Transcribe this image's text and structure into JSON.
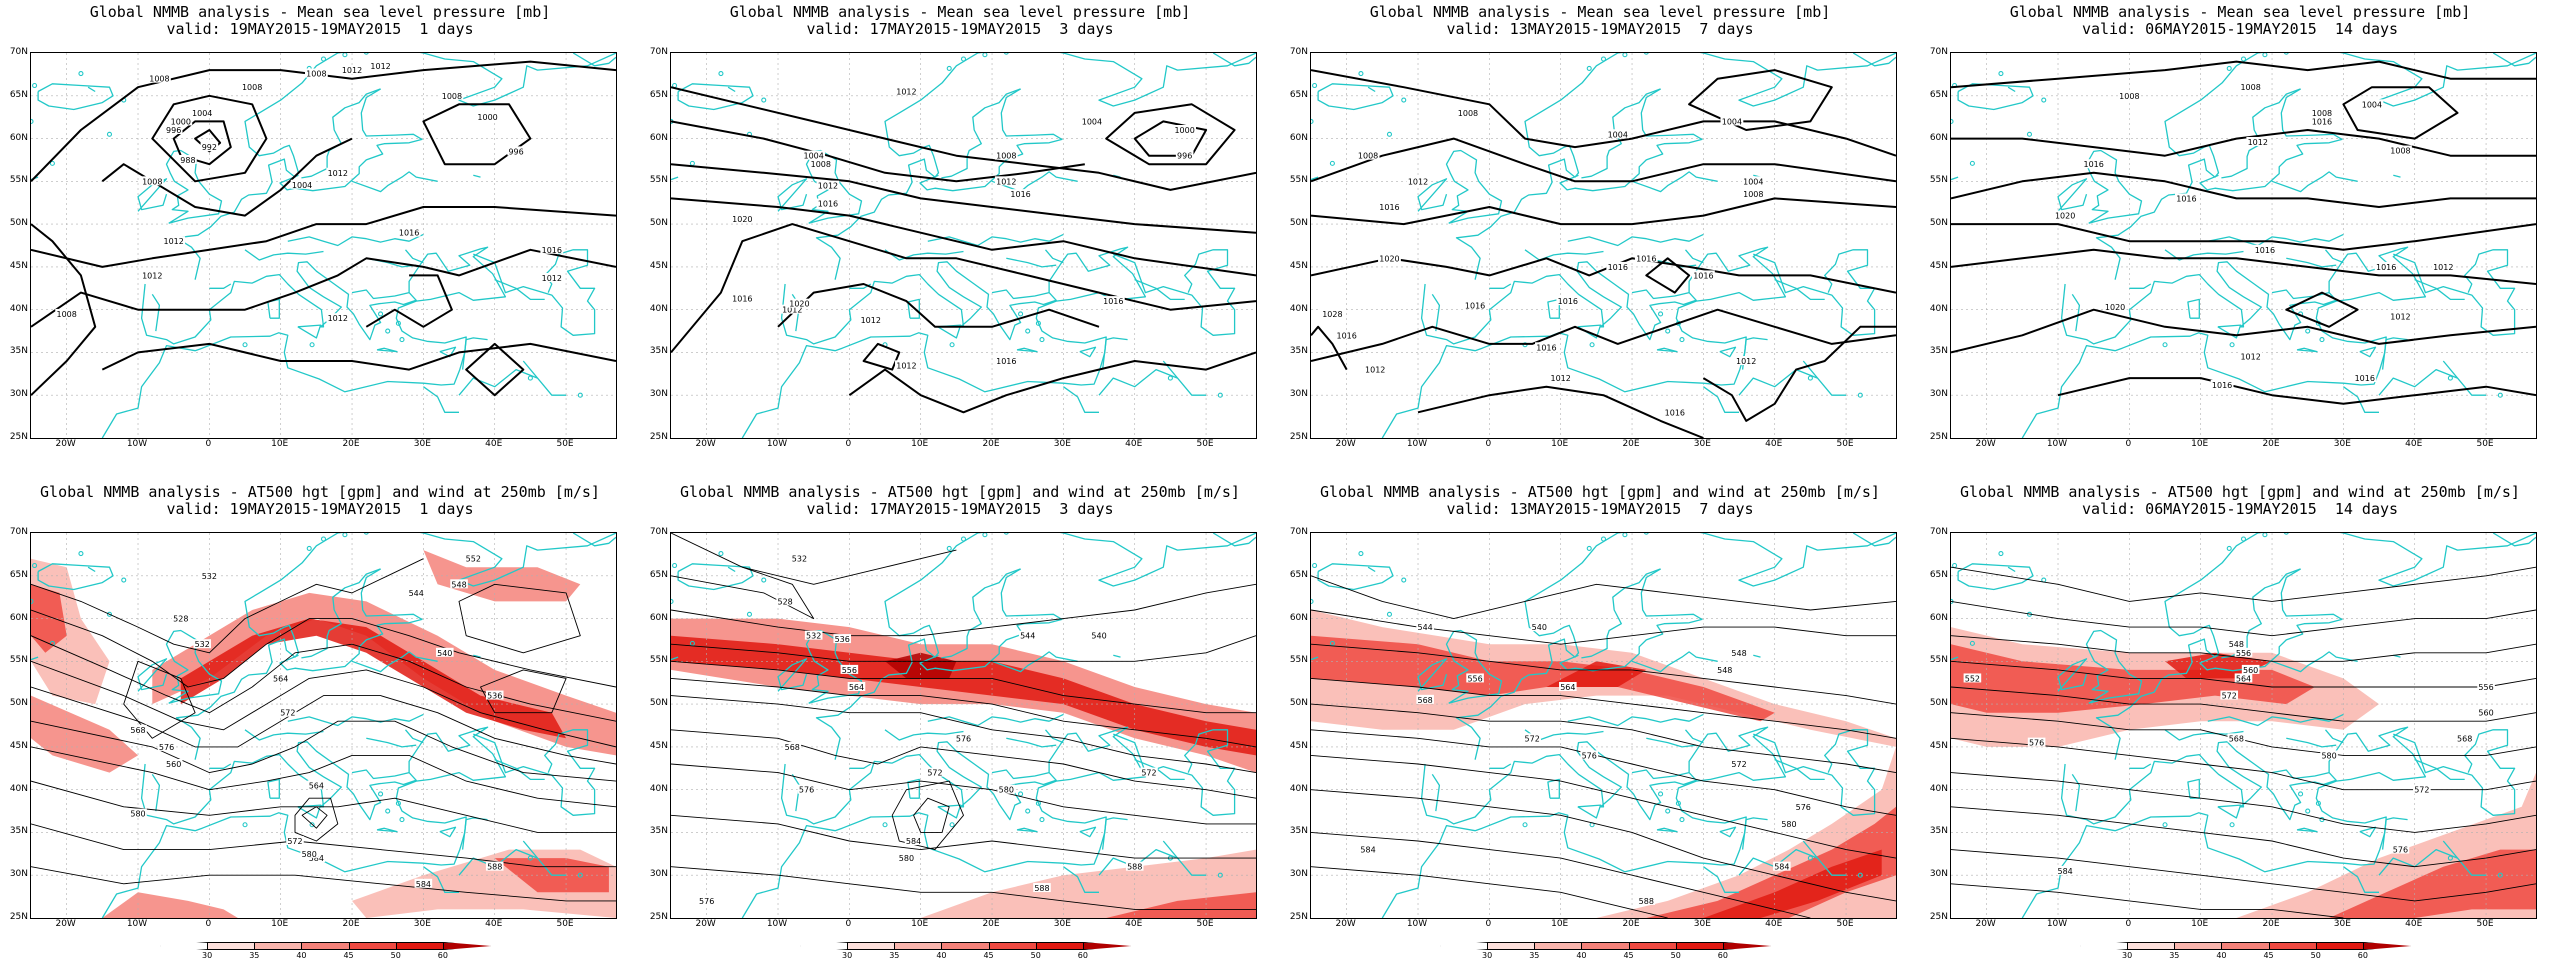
{
  "axes": {
    "lat_labels": [
      "70N",
      "65N",
      "60N",
      "55N",
      "50N",
      "45N",
      "40N",
      "35N",
      "30N",
      "25N"
    ],
    "lon_labels": [
      "20W",
      "10W",
      "0",
      "10E",
      "20E",
      "30E",
      "40E",
      "50E"
    ]
  },
  "colorbar": {
    "ticks": [
      "30",
      "35",
      "40",
      "45",
      "50",
      "60"
    ],
    "colors": [
      "#ffffff",
      "#fde0dc",
      "#f9b5ad",
      "#f4827a",
      "#ee4a42",
      "#e01a12",
      "#b00000"
    ]
  },
  "colors": {
    "coast": "#22c8c8",
    "contour": "#000000",
    "jet": "#e8322a"
  },
  "panels": [
    {
      "title": "Global NMMB analysis - Mean sea level pressure [mb]",
      "valid": "valid: 19MAY2015-19MAY2015  1 days",
      "type": "mslp",
      "contour_labels": [
        "1008",
        "1004",
        "1000",
        "996",
        "992",
        "988",
        "1004",
        "1008",
        "1012",
        "1012",
        "1008",
        "1008",
        "1000",
        "996",
        "1008",
        "1012",
        "1012",
        "1012",
        "1016",
        "1016",
        "1012",
        "1012",
        "1008"
      ]
    },
    {
      "title": "Global NMMB analysis - Mean sea level pressure [mb]",
      "valid": "valid: 17MAY2015-19MAY2015  3 days",
      "type": "mslp",
      "contour_labels": [
        "1012",
        "1004",
        "1008",
        "1012",
        "1016",
        "1008",
        "1004",
        "1000",
        "996",
        "1012",
        "1016",
        "1020",
        "1016",
        "1012",
        "1012",
        "1020",
        "1016",
        "1016",
        "1012"
      ]
    },
    {
      "title": "Global NMMB analysis - Mean sea level pressure [mb]",
      "valid": "valid: 13MAY2015-19MAY2015  7 days",
      "type": "mslp",
      "contour_labels": [
        "1008",
        "1008",
        "1012",
        "1016",
        "1004",
        "1004",
        "1004",
        "1008",
        "1016",
        "1016",
        "1016",
        "1016",
        "1020",
        "1016",
        "1016",
        "1012",
        "1012",
        "1016",
        "1012",
        "1016",
        "1028"
      ]
    },
    {
      "title": "Global NMMB analysis - Mean sea level pressure [mb]",
      "valid": "valid: 06MAY2015-19MAY2015  14 days",
      "type": "mslp",
      "contour_labels": [
        "1008",
        "1008",
        "1008",
        "1004",
        "1016",
        "1012",
        "1008",
        "1016",
        "1020",
        "1016",
        "1016",
        "1016",
        "1012",
        "1012",
        "1016",
        "1016",
        "1012",
        "1020"
      ]
    },
    {
      "title": "Global NMMB analysis - AT500 hgt [gpm] and wind at 250mb [m/s]",
      "valid": "valid: 19MAY2015-19MAY2015  1 days",
      "type": "z500",
      "contour_labels": [
        "532",
        "528",
        "532",
        "548",
        "552",
        "544",
        "540",
        "536",
        "564",
        "572",
        "576",
        "568",
        "580",
        "584",
        "584",
        "588",
        "580",
        "572",
        "564",
        "560"
      ]
    },
    {
      "title": "Global NMMB analysis - AT500 hgt [gpm] and wind at 250mb [m/s]",
      "valid": "valid: 17MAY2015-19MAY2015  3 days",
      "type": "z500",
      "contour_labels": [
        "532",
        "528",
        "532",
        "536",
        "544",
        "540",
        "556",
        "564",
        "576",
        "572",
        "580",
        "568",
        "576",
        "584",
        "588",
        "580",
        "588",
        "576",
        "572"
      ]
    },
    {
      "title": "Global NMMB analysis - AT500 hgt [gpm] and wind at 250mb [m/s]",
      "valid": "valid: 13MAY2015-19MAY2015  7 days",
      "type": "z500",
      "contour_labels": [
        "544",
        "540",
        "548",
        "556",
        "564",
        "568",
        "572",
        "576",
        "584",
        "588",
        "548",
        "572",
        "576",
        "580",
        "584"
      ]
    },
    {
      "title": "Global NMMB analysis - AT500 hgt [gpm] and wind at 250mb [m/s]",
      "valid": "valid: 06MAY2015-19MAY2015  14 days",
      "type": "z500",
      "contour_labels": [
        "552",
        "548",
        "556",
        "560",
        "564",
        "572",
        "576",
        "568",
        "580",
        "584",
        "556",
        "560",
        "568",
        "572",
        "576"
      ]
    }
  ]
}
